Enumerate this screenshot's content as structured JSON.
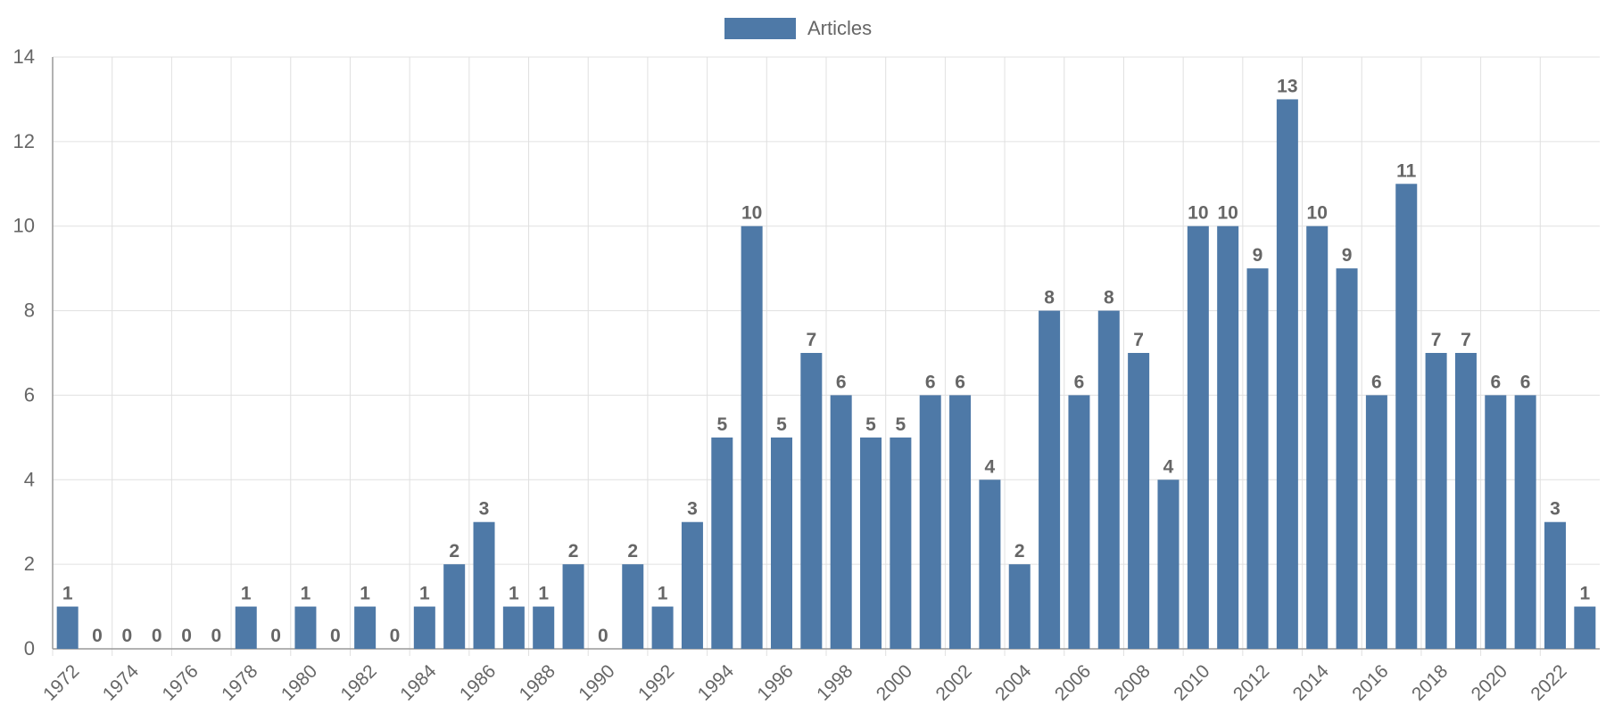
{
  "chart_data": {
    "type": "bar",
    "categories": [
      "1972",
      "1973",
      "1974",
      "1975",
      "1976",
      "1977",
      "1978",
      "1979",
      "1980",
      "1981",
      "1982",
      "1983",
      "1984",
      "1985",
      "1986",
      "1987",
      "1988",
      "1989",
      "1990",
      "1991",
      "1992",
      "1993",
      "1994",
      "1995",
      "1996",
      "1997",
      "1998",
      "1999",
      "2000",
      "2001",
      "2002",
      "2003",
      "2004",
      "2005",
      "2006",
      "2007",
      "2008",
      "2009",
      "2010",
      "2011",
      "2012",
      "2013",
      "2014",
      "2015",
      "2016",
      "2017",
      "2018",
      "2019",
      "2020",
      "2021",
      "2022",
      "2023"
    ],
    "series": [
      {
        "name": "Articles",
        "color": "#4e79a7",
        "values": [
          1,
          0,
          0,
          0,
          0,
          0,
          1,
          0,
          1,
          0,
          1,
          0,
          1,
          2,
          3,
          1,
          1,
          2,
          0,
          2,
          1,
          3,
          5,
          10,
          5,
          7,
          6,
          5,
          5,
          6,
          6,
          4,
          2,
          8,
          6,
          8,
          7,
          4,
          10,
          10,
          9,
          13,
          10,
          9,
          6,
          11,
          7,
          7,
          6,
          6,
          3,
          1
        ]
      }
    ],
    "x_tick_labels": [
      "1972",
      "1974",
      "1976",
      "1978",
      "1980",
      "1982",
      "1984",
      "1986",
      "1988",
      "1990",
      "1992",
      "1994",
      "1996",
      "1998",
      "2000",
      "2002",
      "2004",
      "2006",
      "2008",
      "2010",
      "2012",
      "2014",
      "2016",
      "2018",
      "2020",
      "2022"
    ],
    "y_ticks": [
      0,
      2,
      4,
      6,
      8,
      10,
      12,
      14
    ],
    "ylim": [
      0,
      14
    ],
    "title": "",
    "xlabel": "",
    "ylabel": "",
    "legend_position": "top-center",
    "grid": true,
    "data_labels": true
  }
}
